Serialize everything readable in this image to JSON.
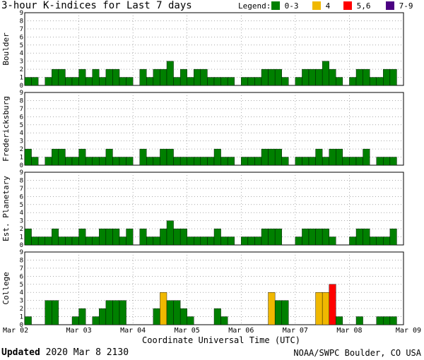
{
  "chart_data": {
    "type": "bar",
    "title": "3-hour K-indices for Last 7 days",
    "xlabel": "Coordinate Universal Time (UTC)",
    "x_tick_labels": [
      "Mar 02",
      "Mar 03",
      "Mar 04",
      "Mar 05",
      "Mar 06",
      "Mar 07",
      "Mar 08",
      "Mar 09"
    ],
    "ylim": [
      0,
      9
    ],
    "y_ticks": [
      "0",
      "1",
      "2",
      "3",
      "4",
      "5",
      "6",
      "7",
      "8",
      "9"
    ],
    "legend": {
      "label": "Legend:",
      "entries": [
        {
          "label": "0-3",
          "color": "#008000"
        },
        {
          "label": "4",
          "color": "#f0b800"
        },
        {
          "label": "5,6",
          "color": "#ff0000"
        },
        {
          "label": "7-9",
          "color": "#4b0082"
        }
      ]
    },
    "panels": [
      {
        "name": "Boulder",
        "values": [
          1,
          1,
          0,
          1,
          2,
          2,
          1,
          1,
          2,
          1,
          2,
          1,
          2,
          2,
          1,
          1,
          0,
          2,
          1,
          2,
          2,
          3,
          1,
          2,
          1,
          2,
          2,
          1,
          1,
          1,
          1,
          0,
          1,
          1,
          1,
          2,
          2,
          2,
          1,
          0,
          1,
          2,
          2,
          2,
          3,
          2,
          1,
          0,
          1,
          2,
          2,
          1,
          1,
          2,
          2,
          0
        ]
      },
      {
        "name": "Fredericksburg",
        "values": [
          2,
          1,
          0,
          1,
          2,
          2,
          1,
          1,
          2,
          1,
          1,
          1,
          2,
          1,
          1,
          1,
          0,
          2,
          1,
          1,
          2,
          2,
          1,
          1,
          1,
          1,
          1,
          1,
          2,
          1,
          1,
          0,
          1,
          1,
          1,
          2,
          2,
          2,
          1,
          0,
          1,
          1,
          1,
          2,
          1,
          2,
          2,
          1,
          1,
          1,
          2,
          0,
          1,
          1,
          1,
          0
        ]
      },
      {
        "name": "Est. Planetary",
        "values": [
          2,
          1,
          1,
          1,
          2,
          1,
          1,
          1,
          2,
          1,
          1,
          2,
          2,
          2,
          1,
          2,
          0,
          2,
          1,
          1,
          2,
          3,
          2,
          2,
          1,
          1,
          1,
          1,
          2,
          1,
          1,
          0,
          1,
          1,
          1,
          2,
          2,
          2,
          0,
          0,
          1,
          2,
          2,
          2,
          2,
          1,
          0,
          0,
          1,
          2,
          2,
          1,
          1,
          1,
          2,
          0
        ]
      },
      {
        "name": "College",
        "values": [
          1,
          0,
          0,
          3,
          3,
          0,
          0,
          1,
          2,
          0,
          1,
          2,
          3,
          3,
          3,
          0,
          0,
          0,
          0,
          2,
          4,
          3,
          3,
          2,
          1,
          0,
          0,
          0,
          2,
          1,
          0,
          0,
          0,
          0,
          0,
          0,
          4,
          3,
          3,
          0,
          0,
          0,
          0,
          4,
          4,
          5,
          1,
          0,
          0,
          1,
          0,
          0,
          1,
          1,
          1,
          0
        ]
      }
    ]
  },
  "footer": {
    "updated_label": "Updated",
    "updated_value": "2020 Mar  8 2130",
    "source": "NOAA/SWPC Boulder, CO USA"
  }
}
